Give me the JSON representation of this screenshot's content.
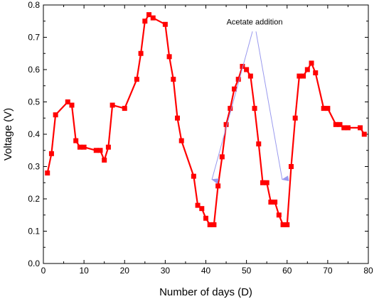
{
  "chart_data": {
    "type": "line",
    "title": "",
    "xlabel": "Number of days (D)",
    "ylabel": "Voltage (V)",
    "xlim": [
      0,
      80
    ],
    "ylim": [
      0.0,
      0.8
    ],
    "x_ticks": [
      "0",
      "10",
      "20",
      "30",
      "40",
      "50",
      "60",
      "70",
      "80"
    ],
    "y_ticks": [
      "0.0",
      "0.1",
      "0.2",
      "0.3",
      "0.4",
      "0.5",
      "0.6",
      "0.7",
      "0.8"
    ],
    "grid": false,
    "legend": "none",
    "series": [
      {
        "color": "#ff0000",
        "marker": "square",
        "x": [
          1,
          2,
          3,
          6,
          7,
          8,
          9,
          10,
          13,
          14,
          15,
          16,
          17,
          20,
          23,
          24,
          25,
          26,
          27,
          30,
          31,
          32,
          33,
          34,
          37,
          38,
          39,
          40,
          41,
          42,
          43,
          44,
          45,
          46,
          47,
          48,
          49,
          50,
          51,
          52,
          53,
          54,
          55,
          56,
          57,
          58,
          59,
          60,
          61,
          62,
          63,
          64,
          65,
          66,
          67,
          69,
          70,
          72,
          73,
          74,
          75,
          78,
          79
        ],
        "y": [
          0.28,
          0.34,
          0.46,
          0.5,
          0.49,
          0.38,
          0.36,
          0.36,
          0.35,
          0.35,
          0.32,
          0.36,
          0.49,
          0.48,
          0.57,
          0.65,
          0.75,
          0.77,
          0.76,
          0.74,
          0.64,
          0.57,
          0.45,
          0.38,
          0.27,
          0.18,
          0.17,
          0.14,
          0.12,
          0.12,
          0.24,
          0.33,
          0.43,
          0.48,
          0.54,
          0.57,
          0.61,
          0.6,
          0.58,
          0.48,
          0.37,
          0.25,
          0.25,
          0.19,
          0.19,
          0.15,
          0.12,
          0.12,
          0.3,
          0.45,
          0.58,
          0.58,
          0.6,
          0.62,
          0.59,
          0.48,
          0.48,
          0.43,
          0.43,
          0.42,
          0.42,
          0.42,
          0.4
        ]
      }
    ],
    "annotations": [
      {
        "text": "Acetate addition",
        "arrow_color": "#9999ee",
        "anchor": [
          52,
          0.74
        ],
        "arrow_targets": [
          [
            41.5,
            0.26
          ],
          [
            58.8,
            0.26
          ]
        ]
      }
    ]
  }
}
